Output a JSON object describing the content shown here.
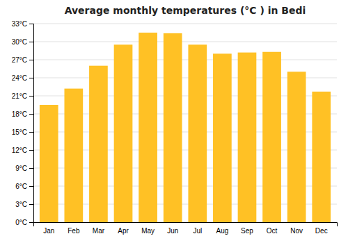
{
  "chart_data": {
    "type": "bar",
    "title": "Average monthly temperatures (°C ) in Bedi",
    "categories": [
      "Jan",
      "Feb",
      "Mar",
      "Apr",
      "May",
      "Jun",
      "Jul",
      "Aug",
      "Sep",
      "Oct",
      "Nov",
      "Dec"
    ],
    "values": [
      19.5,
      22.2,
      26.0,
      29.5,
      31.5,
      31.4,
      29.5,
      28.0,
      28.2,
      28.3,
      25.0,
      21.7
    ],
    "color": "#FFC125",
    "ylim": [
      0,
      33
    ],
    "yticks": [
      {
        "value": 0,
        "label": "0°C"
      },
      {
        "value": 3,
        "label": "3°C"
      },
      {
        "value": 6,
        "label": "6°C"
      },
      {
        "value": 9,
        "label": "9°C"
      },
      {
        "value": 12,
        "label": "12°C"
      },
      {
        "value": 15,
        "label": "15°C"
      },
      {
        "value": 18,
        "label": "18°C"
      },
      {
        "value": 21,
        "label": "21°C"
      },
      {
        "value": 24,
        "label": "24°C"
      },
      {
        "value": 27,
        "label": "27°C"
      },
      {
        "value": 30,
        "label": "30°C"
      },
      {
        "value": 33,
        "label": "33°C"
      }
    ],
    "grid": true
  }
}
